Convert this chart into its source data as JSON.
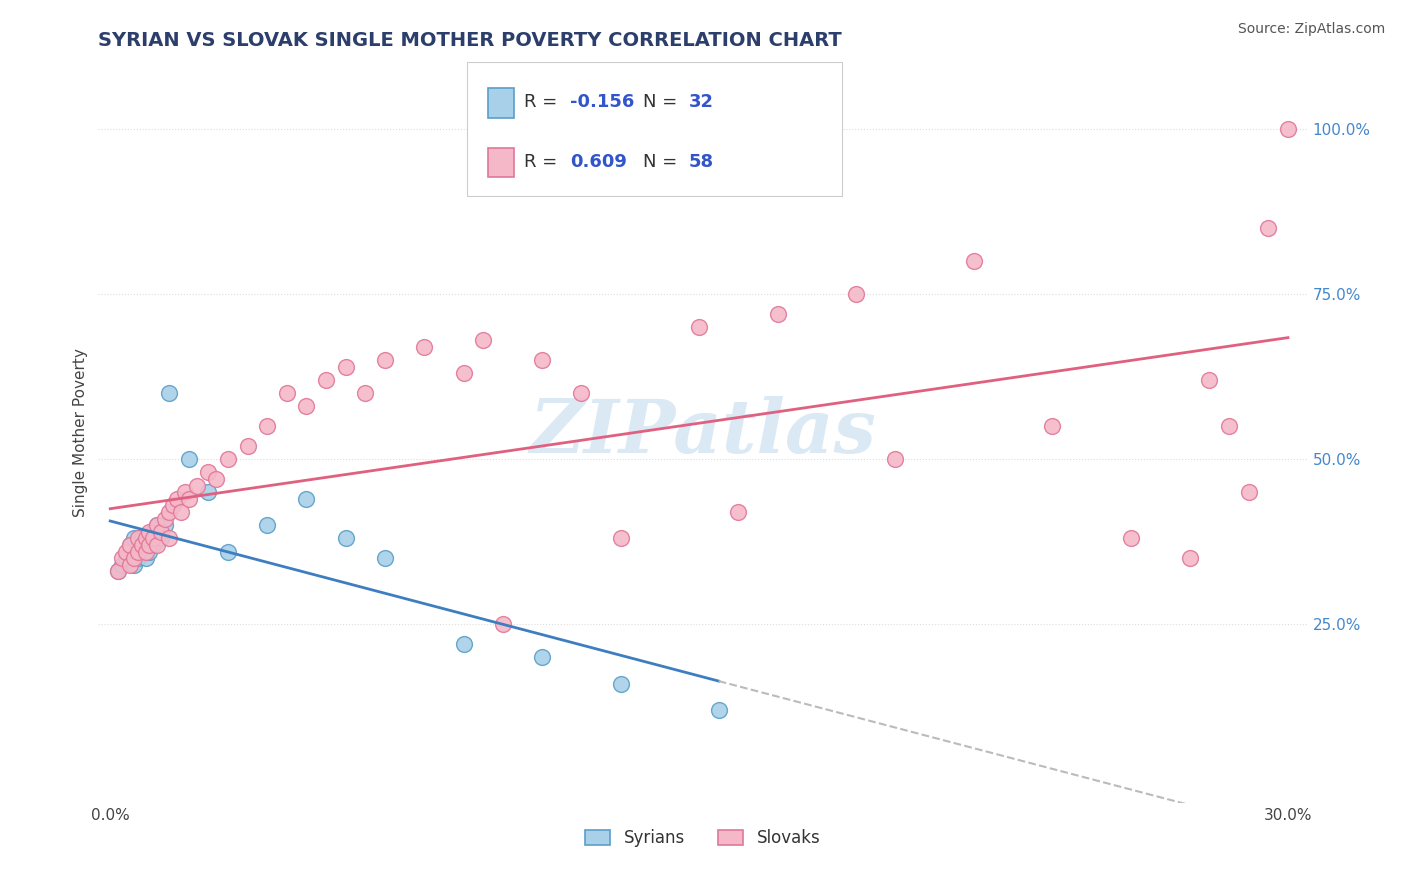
{
  "title": "SYRIAN VS SLOVAK SINGLE MOTHER POVERTY CORRELATION CHART",
  "source": "Source: ZipAtlas.com",
  "ylabel": "Single Mother Poverty",
  "xlim": [
    -0.003,
    0.305
  ],
  "ylim": [
    -0.02,
    1.1
  ],
  "xtick_vals": [
    0.0,
    0.05,
    0.1,
    0.15,
    0.2,
    0.25,
    0.3
  ],
  "xtick_labels": [
    "0.0%",
    "",
    "",
    "",
    "",
    "",
    "30.0%"
  ],
  "ytick_vals": [
    0.25,
    0.5,
    0.75,
    1.0
  ],
  "ytick_labels": [
    "25.0%",
    "50.0%",
    "75.0%",
    "100.0%"
  ],
  "syrians_R": -0.156,
  "syrians_N": 32,
  "slovaks_R": 0.609,
  "slovaks_N": 58,
  "syrian_fill": "#A8D0E8",
  "syrian_edge": "#5B9EC9",
  "slovak_fill": "#F5B8C8",
  "slovak_edge": "#E07898",
  "syrian_line_color": "#3E7EC0",
  "slovak_line_color": "#E06080",
  "dashed_line_color": "#BBBBBB",
  "background_color": "#FFFFFF",
  "grid_color": "#DDDDDD",
  "syrians_x": [
    0.002,
    0.003,
    0.004,
    0.005,
    0.005,
    0.006,
    0.006,
    0.007,
    0.007,
    0.008,
    0.008,
    0.009,
    0.009,
    0.01,
    0.01,
    0.011,
    0.011,
    0.012,
    0.013,
    0.014,
    0.015,
    0.02,
    0.025,
    0.03,
    0.04,
    0.05,
    0.06,
    0.07,
    0.09,
    0.11,
    0.13,
    0.155
  ],
  "syrians_y": [
    0.33,
    0.34,
    0.35,
    0.36,
    0.37,
    0.34,
    0.38,
    0.36,
    0.35,
    0.37,
    0.38,
    0.35,
    0.37,
    0.38,
    0.36,
    0.37,
    0.39,
    0.4,
    0.38,
    0.4,
    0.6,
    0.5,
    0.45,
    0.36,
    0.4,
    0.44,
    0.38,
    0.35,
    0.22,
    0.2,
    0.16,
    0.12
  ],
  "slovaks_x": [
    0.002,
    0.003,
    0.004,
    0.005,
    0.005,
    0.006,
    0.007,
    0.007,
    0.008,
    0.009,
    0.009,
    0.01,
    0.01,
    0.011,
    0.012,
    0.012,
    0.013,
    0.014,
    0.015,
    0.015,
    0.016,
    0.017,
    0.018,
    0.019,
    0.02,
    0.022,
    0.025,
    0.027,
    0.03,
    0.035,
    0.04,
    0.045,
    0.05,
    0.055,
    0.06,
    0.065,
    0.07,
    0.08,
    0.09,
    0.095,
    0.1,
    0.11,
    0.12,
    0.13,
    0.15,
    0.16,
    0.17,
    0.19,
    0.2,
    0.22,
    0.24,
    0.26,
    0.275,
    0.28,
    0.285,
    0.29,
    0.295,
    0.3
  ],
  "slovaks_y": [
    0.33,
    0.35,
    0.36,
    0.34,
    0.37,
    0.35,
    0.36,
    0.38,
    0.37,
    0.36,
    0.38,
    0.37,
    0.39,
    0.38,
    0.37,
    0.4,
    0.39,
    0.41,
    0.38,
    0.42,
    0.43,
    0.44,
    0.42,
    0.45,
    0.44,
    0.46,
    0.48,
    0.47,
    0.5,
    0.52,
    0.55,
    0.6,
    0.58,
    0.62,
    0.64,
    0.6,
    0.65,
    0.67,
    0.63,
    0.68,
    0.25,
    0.65,
    0.6,
    0.38,
    0.7,
    0.42,
    0.72,
    0.75,
    0.5,
    0.8,
    0.55,
    0.38,
    0.35,
    0.62,
    0.55,
    0.45,
    0.85,
    1.0
  ],
  "watermark": "ZIPatlas",
  "title_color": "#2C3E6B",
  "title_fontsize": 14,
  "label_fontsize": 11,
  "tick_fontsize": 11,
  "right_tick_color": "#4488CC",
  "legend_fontsize": 13
}
